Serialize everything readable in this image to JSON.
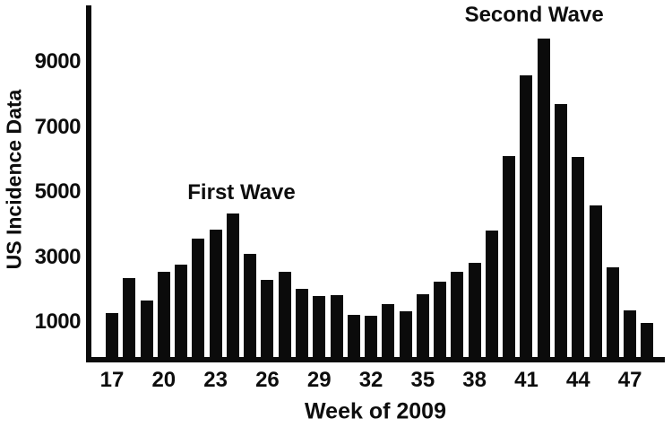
{
  "colors": {
    "background": "#ffffff",
    "bar": "#0b0b0b",
    "text": "#0d0d0d"
  },
  "chart_data": {
    "type": "bar",
    "title": "",
    "xlabel": "Week of 2009",
    "ylabel": "US Incidence Data",
    "x": [
      17,
      18,
      19,
      20,
      21,
      22,
      23,
      24,
      25,
      26,
      27,
      28,
      29,
      30,
      31,
      32,
      33,
      34,
      35,
      36,
      37,
      38,
      39,
      40,
      41,
      42,
      43,
      44,
      45,
      46,
      47,
      48
    ],
    "values": [
      1270,
      2360,
      1670,
      2560,
      2770,
      3570,
      3850,
      4340,
      3090,
      2310,
      2560,
      2030,
      1790,
      1830,
      1220,
      1190,
      1550,
      1330,
      1860,
      2250,
      2560,
      2820,
      3810,
      6100,
      8580,
      9710,
      7710,
      6080,
      4590,
      2680,
      1360,
      980
    ],
    "x_ticks": [
      17,
      20,
      23,
      26,
      29,
      32,
      35,
      38,
      41,
      44,
      47
    ],
    "y_ticks": [
      1000,
      3000,
      5000,
      7000,
      9000
    ],
    "xlim": [
      15.5,
      49
    ],
    "ylim": [
      0,
      10700
    ],
    "grid": false,
    "legend": "none",
    "annotations": [
      {
        "text": "First Wave",
        "week": 24.5,
        "value": 4980
      },
      {
        "text": "Second Wave",
        "week": 41.45,
        "value": 10440
      }
    ]
  }
}
